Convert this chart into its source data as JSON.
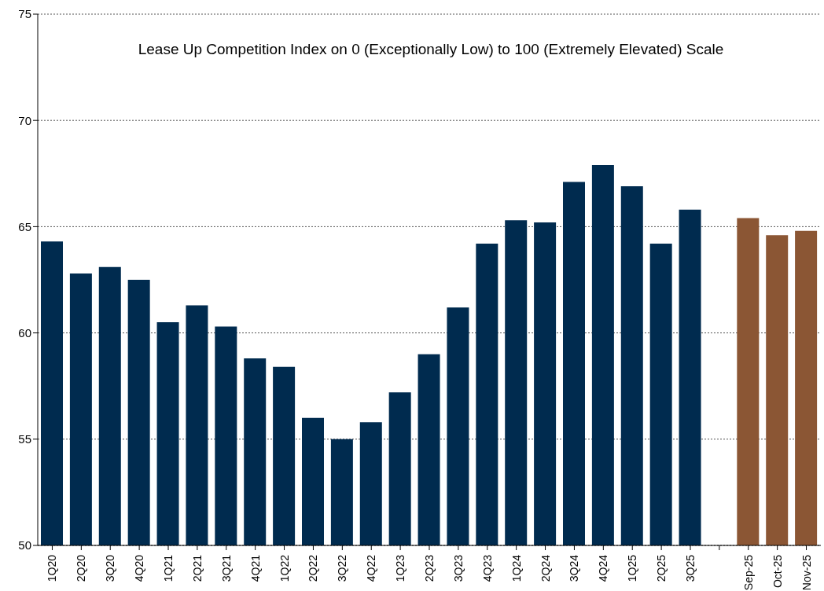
{
  "chart_data": {
    "type": "bar",
    "title": "Lease Up Competition Index on 0 (Exceptionally Low) to 100 (Extremely Elevated) Scale",
    "categories": [
      "1Q20",
      "2Q20",
      "3Q20",
      "4Q20",
      "1Q21",
      "2Q21",
      "3Q21",
      "4Q21",
      "1Q22",
      "2Q22",
      "3Q22",
      "4Q22",
      "1Q23",
      "2Q23",
      "3Q23",
      "4Q23",
      "1Q24",
      "2Q24",
      "3Q24",
      "4Q24",
      "1Q25",
      "2Q25",
      "3Q25",
      null,
      "Sep-25",
      "Oct-25",
      "Nov-25"
    ],
    "values": [
      64.3,
      62.8,
      63.1,
      62.5,
      60.5,
      61.3,
      60.3,
      58.8,
      58.4,
      56.0,
      55.0,
      55.8,
      57.2,
      59.0,
      61.2,
      64.2,
      65.3,
      65.2,
      67.1,
      67.9,
      66.9,
      64.2,
      65.8,
      null,
      65.4,
      64.6,
      64.8
    ],
    "colors": [
      "#002b4f",
      "#002b4f",
      "#002b4f",
      "#002b4f",
      "#002b4f",
      "#002b4f",
      "#002b4f",
      "#002b4f",
      "#002b4f",
      "#002b4f",
      "#002b4f",
      "#002b4f",
      "#002b4f",
      "#002b4f",
      "#002b4f",
      "#002b4f",
      "#002b4f",
      "#002b4f",
      "#002b4f",
      "#002b4f",
      "#002b4f",
      "#002b4f",
      "#002b4f",
      "#002b4f",
      "#8b5634",
      "#8b5634",
      "#8b5634"
    ],
    "ylim": [
      50,
      75
    ],
    "yticks": [
      50,
      55,
      60,
      65,
      70,
      75
    ],
    "grid": "y"
  }
}
